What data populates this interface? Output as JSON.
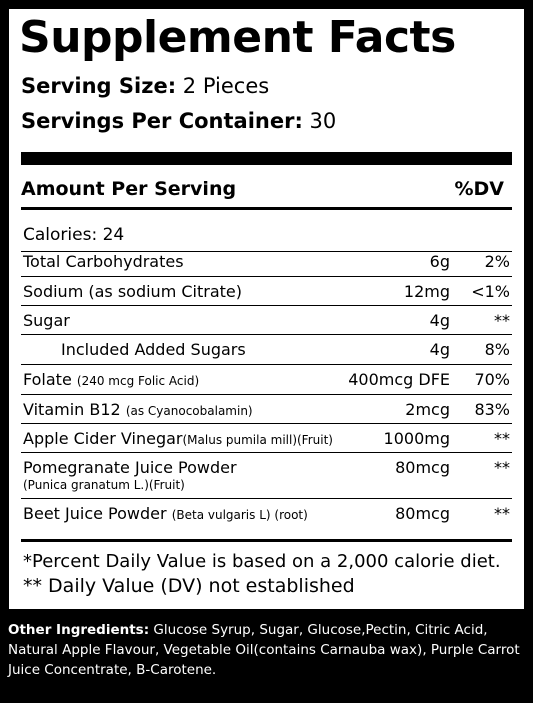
{
  "title": "Supplement Facts",
  "serving_size": {
    "label": "Serving Size:",
    "value": "2 Pieces"
  },
  "servings_per_container": {
    "label": "Servings Per Container:",
    "value": "30"
  },
  "header": {
    "amount": "Amount Per Serving",
    "dv": "%DV"
  },
  "calories": "Calories: 24",
  "rows": [
    {
      "name": "Total Carbohydrates",
      "note": "",
      "sub": "",
      "amount": "6g",
      "dv": "2%"
    },
    {
      "name": "Sodium (as sodium Citrate)",
      "note": "",
      "sub": "",
      "amount": "12mg",
      "dv": "<1%"
    },
    {
      "name": "Sugar",
      "note": "",
      "sub": "",
      "amount": "4g",
      "dv": "**"
    },
    {
      "name": "Included Added Sugars",
      "note": "",
      "sub": "",
      "amount": "4g",
      "dv": "8%"
    },
    {
      "name": "Folate",
      "note": "(240 mcg Folic Acid)",
      "sub": "",
      "amount": "400mcg DFE",
      "dv": "70%"
    },
    {
      "name": "Vitamin B12",
      "note": "(as Cyanocobalamin)",
      "sub": "",
      "amount": "2mcg",
      "dv": "83%"
    },
    {
      "name": "Apple Cider Vinegar",
      "note": "(Malus pumila mill)(Fruit)",
      "sub": "",
      "amount": "1000mg",
      "dv": "**"
    },
    {
      "name": "Pomegranate Juice Powder",
      "note": "",
      "sub": "(Punica granatum L.)(Fruit)",
      "amount": "80mcg",
      "dv": "**"
    },
    {
      "name": "Beet Juice Powder",
      "note": "(Beta vulgaris L) (root)",
      "sub": "",
      "amount": "80mcg",
      "dv": "**"
    }
  ],
  "footnote1": "*Percent Daily Value is based on a 2,000 calorie diet.",
  "footnote2": "** Daily Value (DV) not established",
  "other_ingredients": {
    "label": "Other Ingredients:",
    "text": "Glucose Syrup, Sugar, Glucose,Pectin, Citric Acid,  Natural Apple Flavour, Vegetable Oil(contains Carnauba wax), Purple Carrot Juice Concentrate, B-Carotene."
  }
}
